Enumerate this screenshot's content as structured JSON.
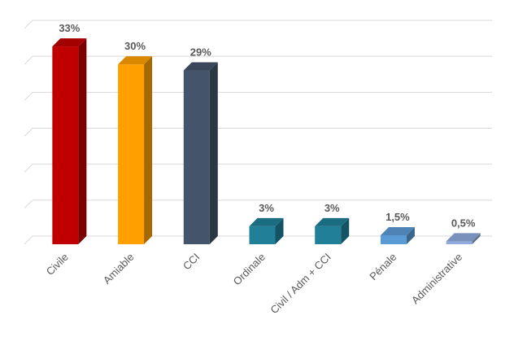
{
  "chart_data": {
    "type": "bar3d",
    "categories": [
      "Civile",
      "Amiable",
      "CCI",
      "Ordinale",
      "Civil / Adm + CCI",
      "Pénale",
      "Administrative"
    ],
    "values": [
      33,
      30,
      29,
      3,
      3,
      1.5,
      0.5
    ],
    "value_labels": [
      "33%",
      "30%",
      "29%",
      "3%",
      "3%",
      "1,5%",
      "0,5%"
    ],
    "colors": [
      "#c00000",
      "#ffa000",
      "#44546a",
      "#1f8098",
      "#1f8098",
      "#5b9bd5",
      "#8faadc"
    ],
    "ylim": [
      0,
      36
    ],
    "yticks": [
      0,
      6,
      12,
      18,
      24,
      30,
      36
    ],
    "grid": true
  }
}
